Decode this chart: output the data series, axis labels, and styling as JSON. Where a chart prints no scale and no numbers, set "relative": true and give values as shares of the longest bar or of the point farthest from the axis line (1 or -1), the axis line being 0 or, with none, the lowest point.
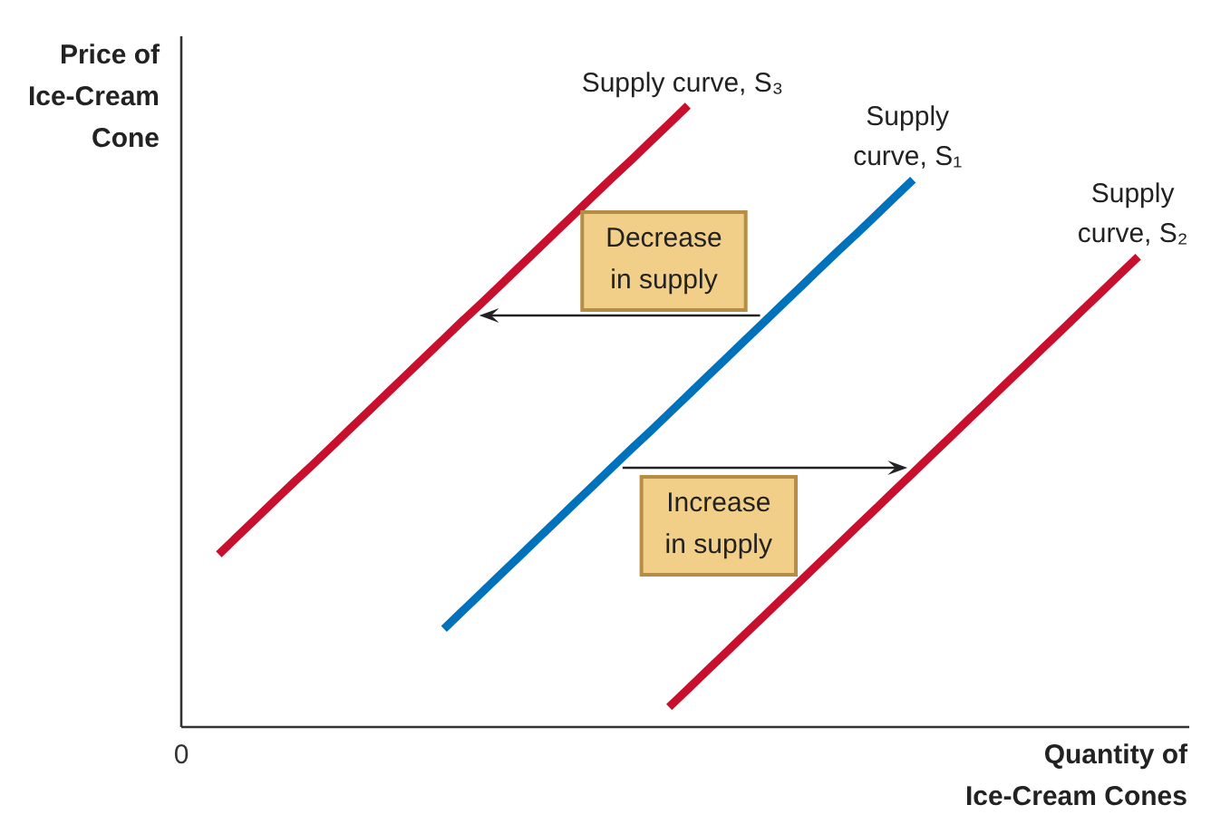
{
  "chart_data": {
    "type": "line",
    "relative": true,
    "xlabel": "Quantity of Ice-Cream Cones",
    "ylabel": "Price of Ice-Cream Cone",
    "categories": [
      null,
      null,
      null,
      null,
      null,
      null,
      null,
      null,
      null,
      null,
      null,
      null,
      null,
      null,
      null,
      null,
      null,
      null,
      null,
      null,
      null,
      null,
      null,
      null,
      null,
      null,
      null,
      null,
      null,
      null,
      null,
      null,
      null,
      null,
      null,
      null,
      null,
      null,
      null,
      null,
      null,
      null,
      null,
      null,
      null,
      null,
      null,
      null,
      null,
      null,
      null,
      null,
      null,
      null
    ],
    "series": [
      {
        "name": "Supply curve, S₁",
        "color": "#0072bc",
        "values": [
          null,
          null,
          null,
          null,
          null,
          null,
          null,
          null,
          null,
          null,
          null,
          null,
          null,
          null,
          0.158,
          0.187,
          0.216,
          0.245,
          0.274,
          0.303,
          0.332,
          0.361,
          0.39,
          0.419,
          0.448,
          0.476,
          0.505,
          0.534,
          0.563,
          0.592,
          0.621,
          0.65,
          0.679,
          0.708,
          0.737,
          0.766,
          0.794,
          0.823,
          0.852,
          0.881,
          null,
          null,
          null,
          null,
          null,
          null,
          null,
          null,
          null,
          null,
          null,
          null,
          null,
          null
        ]
      },
      {
        "name": "Supply curve, S₂",
        "color": "#c8102e",
        "values": [
          null,
          null,
          null,
          null,
          null,
          null,
          null,
          null,
          null,
          null,
          null,
          null,
          null,
          null,
          null,
          null,
          null,
          null,
          null,
          null,
          null,
          null,
          null,
          null,
          null,
          null,
          0.032,
          0.061,
          0.09,
          0.119,
          0.148,
          0.177,
          0.206,
          0.235,
          0.264,
          0.293,
          0.322,
          0.351,
          0.38,
          0.409,
          0.438,
          0.467,
          0.496,
          0.525,
          0.554,
          0.583,
          0.612,
          0.641,
          0.67,
          0.699,
          0.728,
          0.757,
          null,
          null
        ]
      },
      {
        "name": "Supply curve, S₃",
        "color": "#c8102e",
        "values": [
          null,
          null,
          0.278,
          0.307,
          0.336,
          0.365,
          0.394,
          0.422,
          0.451,
          0.48,
          0.509,
          0.538,
          0.567,
          0.596,
          0.625,
          0.654,
          0.682,
          0.711,
          0.74,
          0.769,
          0.798,
          0.827,
          0.856,
          0.885,
          0.913,
          0.942,
          0.971,
          1.0,
          null,
          null,
          null,
          null,
          null,
          null,
          null,
          null,
          null,
          null,
          null,
          null,
          null,
          null,
          null,
          null,
          null,
          null,
          null,
          null,
          null,
          null,
          null,
          null,
          null,
          null
        ]
      }
    ],
    "annotations": [
      "0",
      "Increase in supply",
      "Decrease in supply"
    ]
  }
}
